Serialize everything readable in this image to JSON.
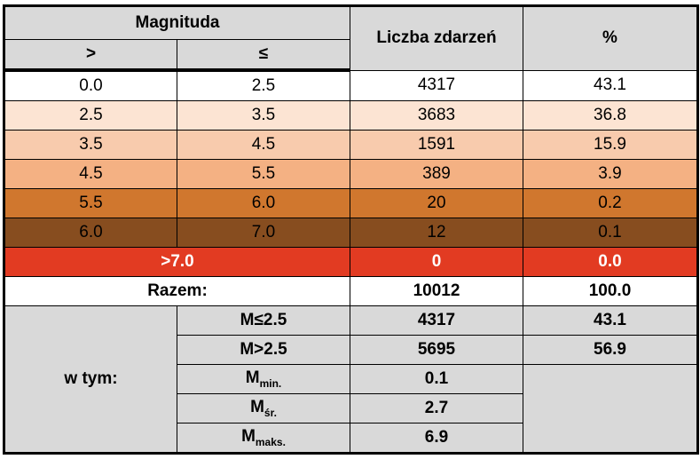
{
  "header": {
    "magnitude": "Magnituda",
    "gt": ">",
    "le": "≤",
    "count": "Liczba zdarzeń",
    "percent": "%"
  },
  "rows": [
    [
      "0.0",
      "2.5",
      "4317",
      "43.1"
    ],
    [
      "2.5",
      "3.5",
      "3683",
      "36.8"
    ],
    [
      "3.5",
      "4.5",
      "1591",
      "15.9"
    ],
    [
      "4.5",
      "5.5",
      "389",
      "3.9"
    ],
    [
      "5.5",
      "6.0",
      "20",
      "0.2"
    ],
    [
      "6.0",
      "7.0",
      "12",
      "0.1"
    ]
  ],
  "over": {
    "label": ">7.0",
    "count": "0",
    "percent": "0.0"
  },
  "total": {
    "label": "Razem:",
    "count": "10012",
    "percent": "100.0"
  },
  "breakdown": {
    "label": "w tym:",
    "items": [
      {
        "main": "M≤2.5",
        "count": "4317",
        "percent": "43.1"
      },
      {
        "main": "M>2.5",
        "count": "5695",
        "percent": "56.9"
      },
      {
        "main": "M",
        "sub": "min.",
        "count": "0.1"
      },
      {
        "main": "M",
        "sub": "śr.",
        "count": "2.7"
      },
      {
        "main": "M",
        "sub": "maks.",
        "count": "6.9"
      }
    ]
  }
}
